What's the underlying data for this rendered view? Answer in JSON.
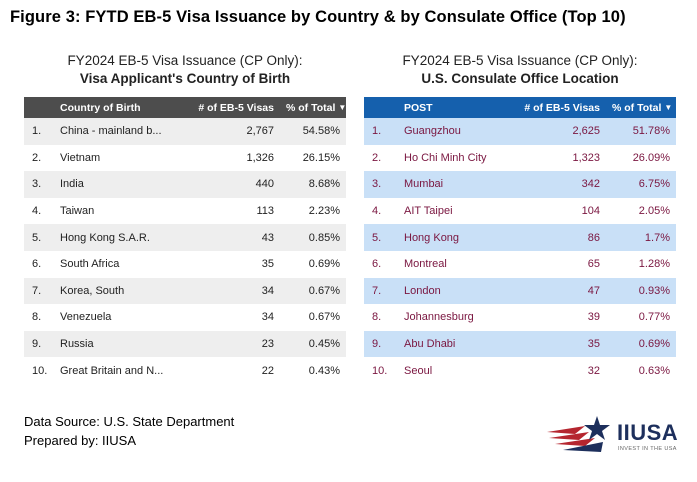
{
  "figure_title": "Figure 3: FYTD EB-5 Visa Issuance by Country & by Consulate Office (Top 10)",
  "sort_icon": "sort-descending-icon",
  "colors": {
    "left_header": "#4d4d4d",
    "right_header": "#1560ad",
    "right_band": "#c9e0f7",
    "right_text": "#7a1640"
  },
  "left": {
    "subtitle_line1": "FY2024 EB-5 Visa Issuance (CP Only):",
    "subtitle_line2": "Visa Applicant's Country of Birth",
    "headers": {
      "idx": "",
      "name": "Country of Birth",
      "visas": "# of EB-5 Visas",
      "pct": "% of Total"
    }
  },
  "right": {
    "subtitle_line1": "FY2024 EB-5 Visa Issuance (CP Only):",
    "subtitle_line2": "U.S. Consulate Office Location",
    "headers": {
      "idx": "",
      "name": "POST",
      "visas": "# of EB-5 Visas",
      "pct": "% of Total"
    }
  },
  "chart_data": [
    {
      "type": "table",
      "title": "FY2024 EB-5 Visa Issuance (CP Only): Visa Applicant's Country of Birth",
      "columns": [
        "",
        "Country of Birth",
        "# of EB-5 Visas",
        "% of Total"
      ],
      "rows": [
        {
          "rank": "1.",
          "name": "China - mainland b...",
          "visas": "2,767",
          "pct": "54.58%"
        },
        {
          "rank": "2.",
          "name": "Vietnam",
          "visas": "1,326",
          "pct": "26.15%"
        },
        {
          "rank": "3.",
          "name": "India",
          "visas": "440",
          "pct": "8.68%"
        },
        {
          "rank": "4.",
          "name": "Taiwan",
          "visas": "113",
          "pct": "2.23%"
        },
        {
          "rank": "5.",
          "name": "Hong Kong S.A.R.",
          "visas": "43",
          "pct": "0.85%"
        },
        {
          "rank": "6.",
          "name": "South Africa",
          "visas": "35",
          "pct": "0.69%"
        },
        {
          "rank": "7.",
          "name": "Korea, South",
          "visas": "34",
          "pct": "0.67%"
        },
        {
          "rank": "8.",
          "name": "Venezuela",
          "visas": "34",
          "pct": "0.67%"
        },
        {
          "rank": "9.",
          "name": "Russia",
          "visas": "23",
          "pct": "0.45%"
        },
        {
          "rank": "10.",
          "name": "Great Britain and N...",
          "visas": "22",
          "pct": "0.43%"
        }
      ]
    },
    {
      "type": "table",
      "title": "FY2024 EB-5 Visa Issuance (CP Only): U.S. Consulate Office Location",
      "columns": [
        "",
        "POST",
        "# of EB-5 Visas",
        "% of Total"
      ],
      "rows": [
        {
          "rank": "1.",
          "name": "Guangzhou",
          "visas": "2,625",
          "pct": "51.78%"
        },
        {
          "rank": "2.",
          "name": "Ho Chi Minh City",
          "visas": "1,323",
          "pct": "26.09%"
        },
        {
          "rank": "3.",
          "name": "Mumbai",
          "visas": "342",
          "pct": "6.75%"
        },
        {
          "rank": "4.",
          "name": "AIT Taipei",
          "visas": "104",
          "pct": "2.05%"
        },
        {
          "rank": "5.",
          "name": "Hong Kong",
          "visas": "86",
          "pct": "1.7%"
        },
        {
          "rank": "6.",
          "name": "Montreal",
          "visas": "65",
          "pct": "1.28%"
        },
        {
          "rank": "7.",
          "name": "London",
          "visas": "47",
          "pct": "0.93%"
        },
        {
          "rank": "8.",
          "name": "Johannesburg",
          "visas": "39",
          "pct": "0.77%"
        },
        {
          "rank": "9.",
          "name": "Abu Dhabi",
          "visas": "35",
          "pct": "0.69%"
        },
        {
          "rank": "10.",
          "name": "Seoul",
          "visas": "32",
          "pct": "0.63%"
        }
      ]
    }
  ],
  "footer": {
    "line1": "Data Source: U.S. State Department",
    "line2": "Prepared by: IIUSA"
  },
  "logo": {
    "text": "IIUSA",
    "tagline": "INVEST IN THE USA",
    "icon": "star-flag-logo-icon"
  }
}
